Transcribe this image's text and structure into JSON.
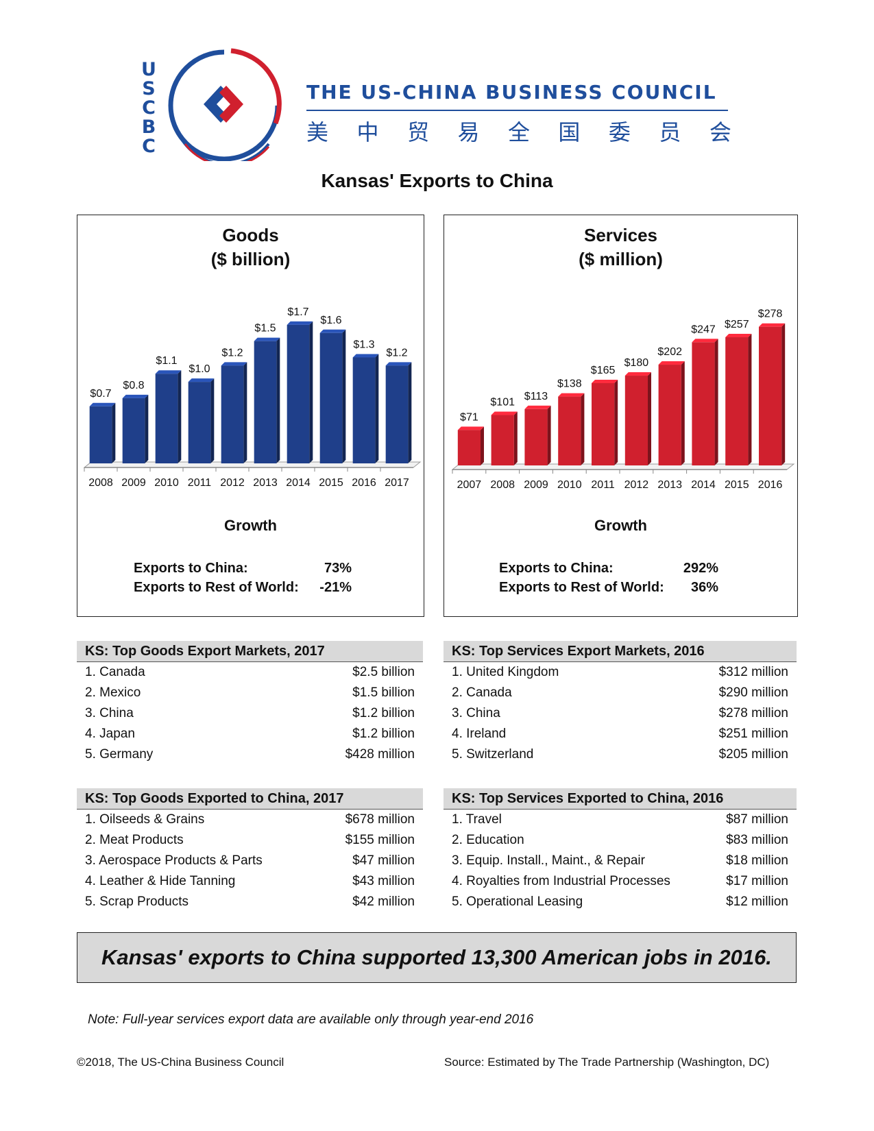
{
  "header": {
    "logo_letters": [
      "U",
      "S",
      "C",
      "B",
      "C"
    ],
    "org_name": "THE US-CHINA BUSINESS COUNCIL",
    "org_name_cn": [
      "美",
      "中",
      "贸",
      "易",
      "全",
      "国",
      "委",
      "员",
      "会"
    ],
    "colors": {
      "blue": "#1f4e9c",
      "red": "#d0202e"
    }
  },
  "page_title": "Kansas' Exports to China",
  "chart_data": [
    {
      "type": "bar",
      "title_line1": "Goods",
      "title_line2": "($ billion)",
      "categories": [
        "2008",
        "2009",
        "2010",
        "2011",
        "2012",
        "2013",
        "2014",
        "2015",
        "2016",
        "2017"
      ],
      "values": [
        0.7,
        0.8,
        1.1,
        1.0,
        1.2,
        1.5,
        1.7,
        1.6,
        1.3,
        1.2
      ],
      "data_labels": [
        "$0.7",
        "$0.8",
        "$1.1",
        "$1.0",
        "$1.2",
        "$1.5",
        "$1.7",
        "$1.6",
        "$1.3",
        "$1.2"
      ],
      "ylim": [
        0,
        1.8
      ],
      "grid": false,
      "color": "#1f3f8a"
    },
    {
      "type": "bar",
      "title_line1": "Services",
      "title_line2": "($ million)",
      "categories": [
        "2007",
        "2008",
        "2009",
        "2010",
        "2011",
        "2012",
        "2013",
        "2014",
        "2015",
        "2016"
      ],
      "values": [
        71,
        101,
        113,
        138,
        165,
        180,
        202,
        247,
        257,
        278
      ],
      "data_labels": [
        "$71",
        "$101",
        "$113",
        "$138",
        "$165",
        "$180",
        "$202",
        "$247",
        "$257",
        "$278"
      ],
      "ylim": [
        0,
        290
      ],
      "grid": false,
      "color": "#d0202e"
    }
  ],
  "goods_growth": {
    "title": "Growth",
    "rows": [
      {
        "label": "Exports to China:",
        "value": "73%"
      },
      {
        "label": "Exports to Rest of World:",
        "value": "-21%"
      }
    ]
  },
  "services_growth": {
    "title": "Growth",
    "rows": [
      {
        "label": "Exports to China:",
        "value": "292%"
      },
      {
        "label": "Exports to Rest of World:",
        "value": "36%"
      }
    ]
  },
  "tables": {
    "goods_markets": {
      "title": "KS: Top Goods Export Markets, 2017",
      "rows": [
        {
          "label": "1. Canada",
          "value": "$2.5 billion"
        },
        {
          "label": "2. Mexico",
          "value": "$1.5 billion"
        },
        {
          "label": "3. China",
          "value": "$1.2 billion"
        },
        {
          "label": "4. Japan",
          "value": "$1.2 billion"
        },
        {
          "label": "5. Germany",
          "value": "$428 million"
        }
      ]
    },
    "services_markets": {
      "title": "KS: Top Services Export Markets, 2016",
      "rows": [
        {
          "label": "1. United Kingdom",
          "value": "$312 million"
        },
        {
          "label": "2. Canada",
          "value": "$290 million"
        },
        {
          "label": "3. China",
          "value": "$278 million"
        },
        {
          "label": "4. Ireland",
          "value": "$251 million"
        },
        {
          "label": "5. Switzerland",
          "value": "$205 million"
        }
      ]
    },
    "goods_to_china": {
      "title": "KS: Top Goods Exported to China, 2017",
      "rows": [
        {
          "label": "1. Oilseeds & Grains",
          "value": "$678 million"
        },
        {
          "label": "2. Meat Products",
          "value": "$155 million"
        },
        {
          "label": "3. Aerospace Products & Parts",
          "value": "$47 million"
        },
        {
          "label": "4. Leather & Hide Tanning",
          "value": "$43 million"
        },
        {
          "label": "5. Scrap Products",
          "value": "$42 million"
        }
      ]
    },
    "services_to_china": {
      "title": "KS: Top Services Exported to China, 2016",
      "rows": [
        {
          "label": "1. Travel",
          "value": "$87 million"
        },
        {
          "label": "2. Education",
          "value": "$83 million"
        },
        {
          "label": "3. Equip. Install., Maint., & Repair",
          "value": "$18 million"
        },
        {
          "label": "4. Royalties from Industrial Processes",
          "value": "$17 million"
        },
        {
          "label": "5. Operational Leasing",
          "value": "$12 million"
        }
      ]
    }
  },
  "banner": "Kansas' exports to China supported 13,300 American jobs in 2016.",
  "note": "Note: Full-year services export data are available only through year-end 2016",
  "copyright": "©2018, The US-China Business Council",
  "source": "Source: Estimated by The Trade Partnership (Washington, DC)"
}
